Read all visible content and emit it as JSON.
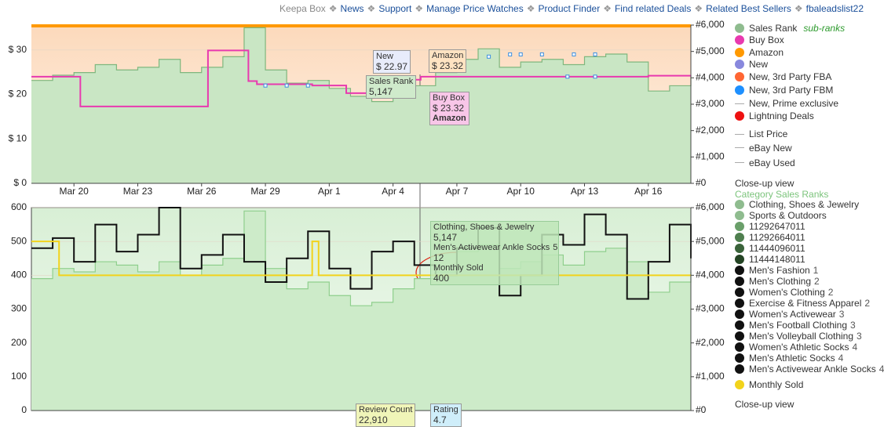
{
  "nav": [
    "Keepa Box",
    "News",
    "Support",
    "Manage Price Watches",
    "Product Finder",
    "Find related Deals",
    "Related Best Sellers",
    "fbaleadslist22"
  ],
  "charts": [
    {
      "xlim": [
        0,
        31
      ],
      "xticks": [
        {
          "value": 2,
          "label": "Mar 20"
        },
        {
          "value": 5,
          "label": "Mar 23"
        },
        {
          "value": 8,
          "label": "Mar 26"
        },
        {
          "value": 11,
          "label": "Mar 29"
        },
        {
          "value": 14,
          "label": "Apr 1"
        },
        {
          "value": 17,
          "label": "Apr 4"
        },
        {
          "value": 20,
          "label": "Apr 7"
        },
        {
          "value": 23,
          "label": "Apr 10"
        },
        {
          "value": 26,
          "label": "Apr 13"
        },
        {
          "value": 29,
          "label": "Apr 16"
        }
      ],
      "ylim": [
        0,
        35.6
      ],
      "yticks": [
        {
          "value": 0,
          "label": "$ 0"
        },
        {
          "value": 10,
          "label": "$ 10"
        },
        {
          "value": 20,
          "label": "$ 20"
        },
        {
          "value": 30,
          "label": "$ 30"
        }
      ],
      "y2lim": [
        0,
        6000
      ],
      "y2ticks": [
        {
          "value": 0,
          "label": "#0"
        },
        {
          "value": 1000,
          "label": "#1,000"
        },
        {
          "value": 2000,
          "label": "#2,000"
        },
        {
          "value": 3000,
          "label": "#3,000"
        },
        {
          "value": 4000,
          "label": "#4,000"
        },
        {
          "value": 5000,
          "label": "#5,000"
        },
        {
          "value": 6000,
          "label": "#6,000"
        }
      ],
      "series": [
        {
          "style": "area",
          "axis": "y2",
          "color": "#7fb77e",
          "fill": "#c9e6c4",
          "x": [
            0,
            1,
            2,
            3,
            4,
            5,
            6,
            7,
            8,
            9,
            10,
            11,
            12,
            13,
            14,
            15,
            16,
            17,
            18,
            19,
            20,
            21,
            22,
            23,
            24,
            25,
            26,
            27,
            28,
            29,
            30,
            31
          ],
          "values": [
            3900,
            4100,
            4200,
            4500,
            4300,
            4400,
            4700,
            4200,
            4400,
            4800,
            5900,
            4300,
            3800,
            3900,
            3600,
            3300,
            3100,
            3300,
            3700,
            4200,
            4700,
            5100,
            4400,
            4600,
            4700,
            4500,
            4800,
            4900,
            4600,
            3500,
            3700,
            4100
          ]
        },
        {
          "style": "step",
          "color": "#e83aaf",
          "x": [
            0,
            2.3,
            8.3,
            10.2,
            10.6,
            13.2,
            14.8,
            16.8,
            17.8,
            18.3,
            29
          ],
          "values": [
            24,
            17.3,
            29.9,
            23,
            22.3,
            22,
            20.3,
            21.5,
            23.3,
            24,
            24.2
          ]
        },
        {
          "style": "points",
          "color": "#3b8fe0",
          "x": [
            11,
            12,
            13,
            21.5,
            22.5,
            23,
            24,
            25.5,
            26.5,
            25.2,
            26.5
          ],
          "values": [
            22,
            22,
            22,
            28.5,
            29,
            29,
            29,
            29,
            29,
            24,
            24
          ]
        }
      ]
    },
    {
      "xlim": [
        0,
        31
      ],
      "ylim": [
        0,
        600
      ],
      "yticks": [
        0,
        100,
        200,
        300,
        400,
        500,
        600
      ],
      "y2lim": [
        0,
        6000
      ],
      "y2ticks": [
        {
          "value": 0,
          "label": "#0"
        },
        {
          "value": 1000,
          "label": "#1,000"
        },
        {
          "value": 2000,
          "label": "#2,000"
        },
        {
          "value": 3000,
          "label": "#3,000"
        },
        {
          "value": 4000,
          "label": "#4,000"
        },
        {
          "value": 5000,
          "label": "#5,000"
        },
        {
          "value": 6000,
          "label": "#6,000"
        }
      ],
      "series": [
        {
          "style": "area",
          "axis": "y2",
          "color": "#8fcf8d",
          "fill": "#cdebc9",
          "x": [
            0,
            1,
            2,
            3,
            4,
            5,
            6,
            7,
            8,
            9,
            10,
            11,
            12,
            13,
            14,
            15,
            16,
            17,
            18,
            19,
            20,
            21,
            22,
            23,
            24,
            25,
            26,
            27,
            28,
            29,
            30,
            31
          ],
          "values": [
            3900,
            4200,
            4100,
            4400,
            4300,
            4100,
            4400,
            4000,
            4300,
            4500,
            5900,
            4200,
            3600,
            3800,
            3400,
            3100,
            3200,
            3600,
            3900,
            4100,
            4700,
            4900,
            4200,
            4400,
            4600,
            4300,
            4700,
            4800,
            4400,
            3500,
            3800,
            4100
          ]
        },
        {
          "style": "step",
          "axis": "y2",
          "color": "#111111",
          "x": [
            0,
            1,
            2,
            3,
            4,
            5,
            6,
            7,
            8,
            9,
            10,
            11,
            12,
            13,
            14,
            15,
            16,
            17,
            18,
            19,
            20,
            21,
            22,
            23,
            24,
            25,
            26,
            27,
            28,
            29,
            30,
            31
          ],
          "values": [
            4800,
            5100,
            4400,
            5500,
            4700,
            5200,
            6000,
            4200,
            4600,
            5200,
            4400,
            3800,
            4500,
            5300,
            4200,
            3600,
            4700,
            5000,
            4300,
            4000,
            4800,
            5400,
            3400,
            4000,
            5200,
            4900,
            5800,
            5200,
            3300,
            4400,
            5500,
            4500
          ]
        },
        {
          "style": "step",
          "color": "#f2d31b",
          "x": [
            0,
            1.3,
            13.2,
            13.5
          ],
          "values": [
            500,
            400,
            500,
            400
          ]
        }
      ]
    }
  ],
  "tooltips_top": [
    {
      "label": "New",
      "value": "$ 22.97"
    },
    {
      "label": "Amazon",
      "value": "$ 23.32"
    },
    {
      "label": "Sales Rank",
      "value": "5,147"
    },
    {
      "label": "Buy Box",
      "value": "$ 23.32",
      "note": "Amazon"
    }
  ],
  "tooltip_bottom": {
    "category": "Clothing, Shoes & Jewelry",
    "rank": "5,147",
    "sub": "Men's Activewear Ankle Socks",
    "level": "5",
    "sub_rank": "12",
    "sold_label": "Monthly Sold",
    "sold": "400"
  },
  "footer": [
    {
      "label": "Review Count",
      "value": "22,910"
    },
    {
      "label": "Rating",
      "value": "4.7"
    }
  ],
  "legend": {
    "sub_ranks": "sub-ranks",
    "items": [
      {
        "label": "Sales Rank",
        "color": "#8fbc8f",
        "kind": "dot"
      },
      {
        "label": "Buy Box",
        "color": "#e83aaf",
        "kind": "dot"
      },
      {
        "label": "Amazon",
        "color": "#ff9900",
        "kind": "dot"
      },
      {
        "label": "New",
        "color": "#8888dd",
        "kind": "dot"
      },
      {
        "label": "New, 3rd Party FBA",
        "color": "#ff6633",
        "kind": "dot"
      },
      {
        "label": "New, 3rd Party FBM",
        "color": "#1e90ff",
        "kind": "dot"
      },
      {
        "label": "New, Prime exclusive",
        "color": "#aaaaaa",
        "kind": "line"
      },
      {
        "label": "Lightning Deals",
        "color": "#ee1111",
        "kind": "dot"
      },
      {
        "label": "List Price",
        "color": "#aaaaaa",
        "kind": "line"
      },
      {
        "label": "eBay New",
        "color": "#aaaaaa",
        "kind": "line"
      },
      {
        "label": "eBay Used",
        "color": "#aaaaaa",
        "kind": "line"
      }
    ],
    "closeup": "Close-up view",
    "ranks_title": "Category Sales Ranks",
    "ranks": [
      {
        "label": "Clothing, Shoes & Jewelry",
        "color": "#8fbc8f"
      },
      {
        "label": "Sports & Outdoors",
        "color": "#8fbc8f"
      },
      {
        "label": "11292647011",
        "color": "#6a9f6a"
      },
      {
        "label": "11292664011",
        "color": "#4f7f4f"
      },
      {
        "label": "11444096011",
        "color": "#3a633a"
      },
      {
        "label": "11444148011",
        "color": "#244424"
      },
      {
        "label": "Men's Fashion",
        "color": "#111",
        "level": "1"
      },
      {
        "label": "Men's Clothing",
        "color": "#111",
        "level": "2"
      },
      {
        "label": "Women's Clothing",
        "color": "#111",
        "level": "2"
      },
      {
        "label": "Exercise & Fitness Apparel",
        "color": "#111",
        "level": "2"
      },
      {
        "label": "Women's Activewear",
        "color": "#111",
        "level": "3"
      },
      {
        "label": "Men's Football Clothing",
        "color": "#111",
        "level": "3"
      },
      {
        "label": "Men's Volleyball Clothing",
        "color": "#111",
        "level": "3"
      },
      {
        "label": "Women's Athletic Socks",
        "color": "#111",
        "level": "4"
      },
      {
        "label": "Men's Athletic Socks",
        "color": "#111",
        "level": "4"
      },
      {
        "label": "Men's Activewear Ankle Socks",
        "color": "#111",
        "level": "4"
      }
    ],
    "monthly": {
      "label": "Monthly Sold",
      "color": "#f2d31b"
    },
    "closeup2": "Close-up view"
  }
}
